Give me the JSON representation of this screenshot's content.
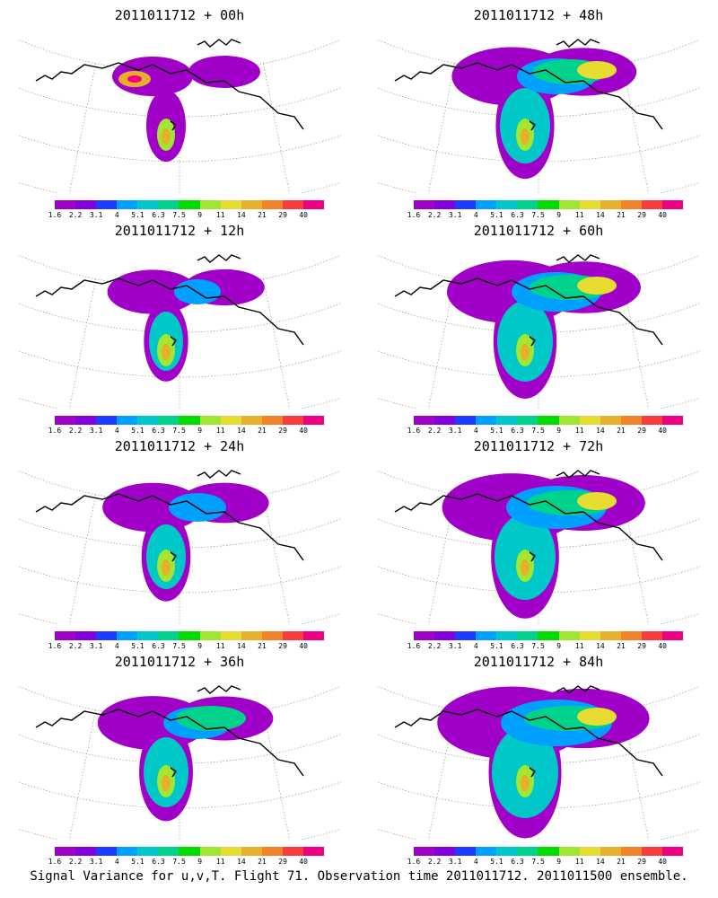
{
  "panels": [
    {
      "title": "2011011712 + 00h",
      "intensity": 0
    },
    {
      "title": "2011011712 + 48h",
      "intensity": 4
    },
    {
      "title": "2011011712 + 12h",
      "intensity": 1
    },
    {
      "title": "2011011712 + 60h",
      "intensity": 5
    },
    {
      "title": "2011011712 + 24h",
      "intensity": 2
    },
    {
      "title": "2011011712 + 72h",
      "intensity": 6
    },
    {
      "title": "2011011712 + 36h",
      "intensity": 3
    },
    {
      "title": "2011011712 + 84h",
      "intensity": 7
    }
  ],
  "colorbar": {
    "ticks": [
      "1.6",
      "2.2",
      "3.1",
      "4",
      "5.1",
      "6.3",
      "7.5",
      "9",
      "11",
      "14",
      "21",
      "29",
      "40"
    ],
    "colors": [
      "#a000c8",
      "#8200dc",
      "#1e3cff",
      "#00a0ff",
      "#00c8c8",
      "#00d28c",
      "#00dc00",
      "#a0e632",
      "#e6dc32",
      "#e6af2d",
      "#f08228",
      "#fa3c3c",
      "#f00082"
    ]
  },
  "footer": "Signal Variance for u,v,T. Flight 71. Observation time 2011011712. 2011011500 ensemble."
}
